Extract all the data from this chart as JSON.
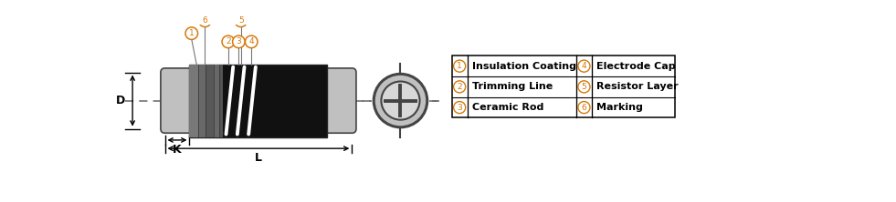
{
  "bg_color": "#ffffff",
  "gray_light": "#c0c0c0",
  "gray_light2": "#d8d8d8",
  "gray_mid": "#888888",
  "gray_dark": "#444444",
  "gray_band1": "#707070",
  "gray_band2": "#585858",
  "gray_band3": "#686868",
  "black": "#111111",
  "white": "#ffffff",
  "orange": "#d4790a",
  "text_color": "#111111",
  "dashed_color": "#666666",
  "table_entries": [
    [
      "1",
      "Insulation Coating",
      "4",
      "Electrode Cap"
    ],
    [
      "2",
      "Trimming Line",
      "5",
      "Resistor Layer"
    ],
    [
      "3",
      "Ceramic Rod",
      "6",
      "Marking"
    ]
  ]
}
